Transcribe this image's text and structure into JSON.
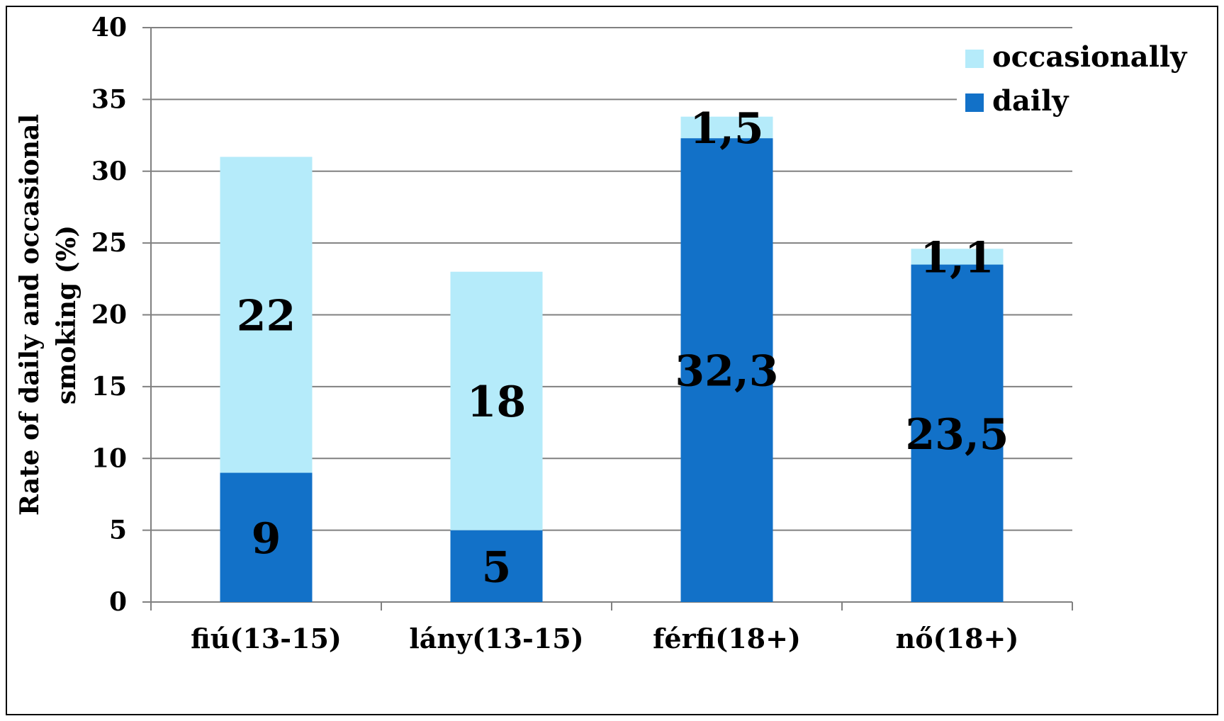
{
  "chart_data": {
    "type": "bar",
    "stacked": true,
    "categories": [
      "fiú(13-15)",
      "lány(13-15)",
      "férfi(18+)",
      "nő(18+)"
    ],
    "series": [
      {
        "name": "daily",
        "values": [
          9,
          5,
          32.3,
          23.5
        ],
        "labels": [
          "9",
          "5",
          "32,3",
          "23,5"
        ],
        "color": "#1271c8"
      },
      {
        "name": "occasionally",
        "values": [
          22,
          18,
          1.5,
          1.1
        ],
        "labels": [
          "22",
          "18",
          "1,5",
          "1,1"
        ],
        "color": "#b5ebfa"
      }
    ],
    "ylabel_lines": [
      "Rate of daily and occasional",
      "smoking  (%)"
    ],
    "ylim": [
      0,
      40
    ],
    "yticks": [
      0,
      5,
      10,
      15,
      20,
      25,
      30,
      35,
      40
    ],
    "grid": true,
    "legend_position": "top-right",
    "legend_order": [
      "occasionally",
      "daily"
    ]
  }
}
